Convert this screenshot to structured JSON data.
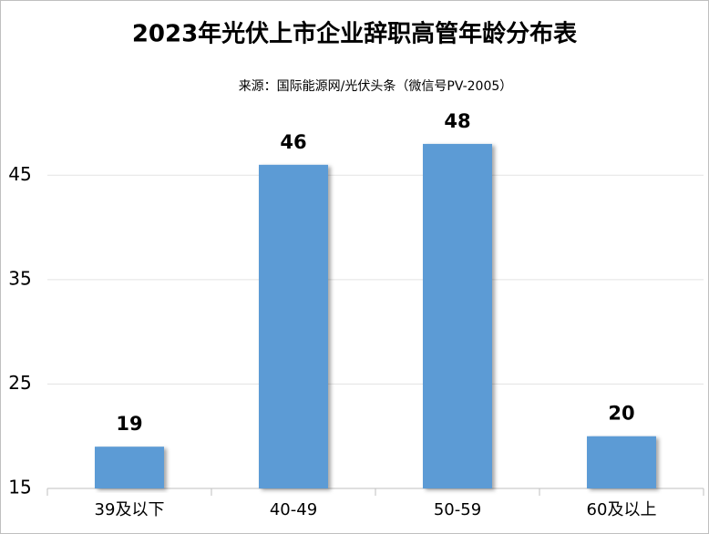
{
  "chart_data": {
    "type": "bar",
    "title": "2023年光伏上市企业辞职高管年龄分布表",
    "subtitle": "来源：国际能源网/光伏头条（微信号PV-2005）",
    "categories": [
      "39及以下",
      "40-49",
      "50-59",
      "60及以上"
    ],
    "values": [
      19,
      46,
      48,
      20
    ],
    "color": "#5b9bd5",
    "ylim": [
      15,
      50
    ],
    "yticks": [
      15,
      25,
      35,
      45
    ],
    "grid": true
  }
}
